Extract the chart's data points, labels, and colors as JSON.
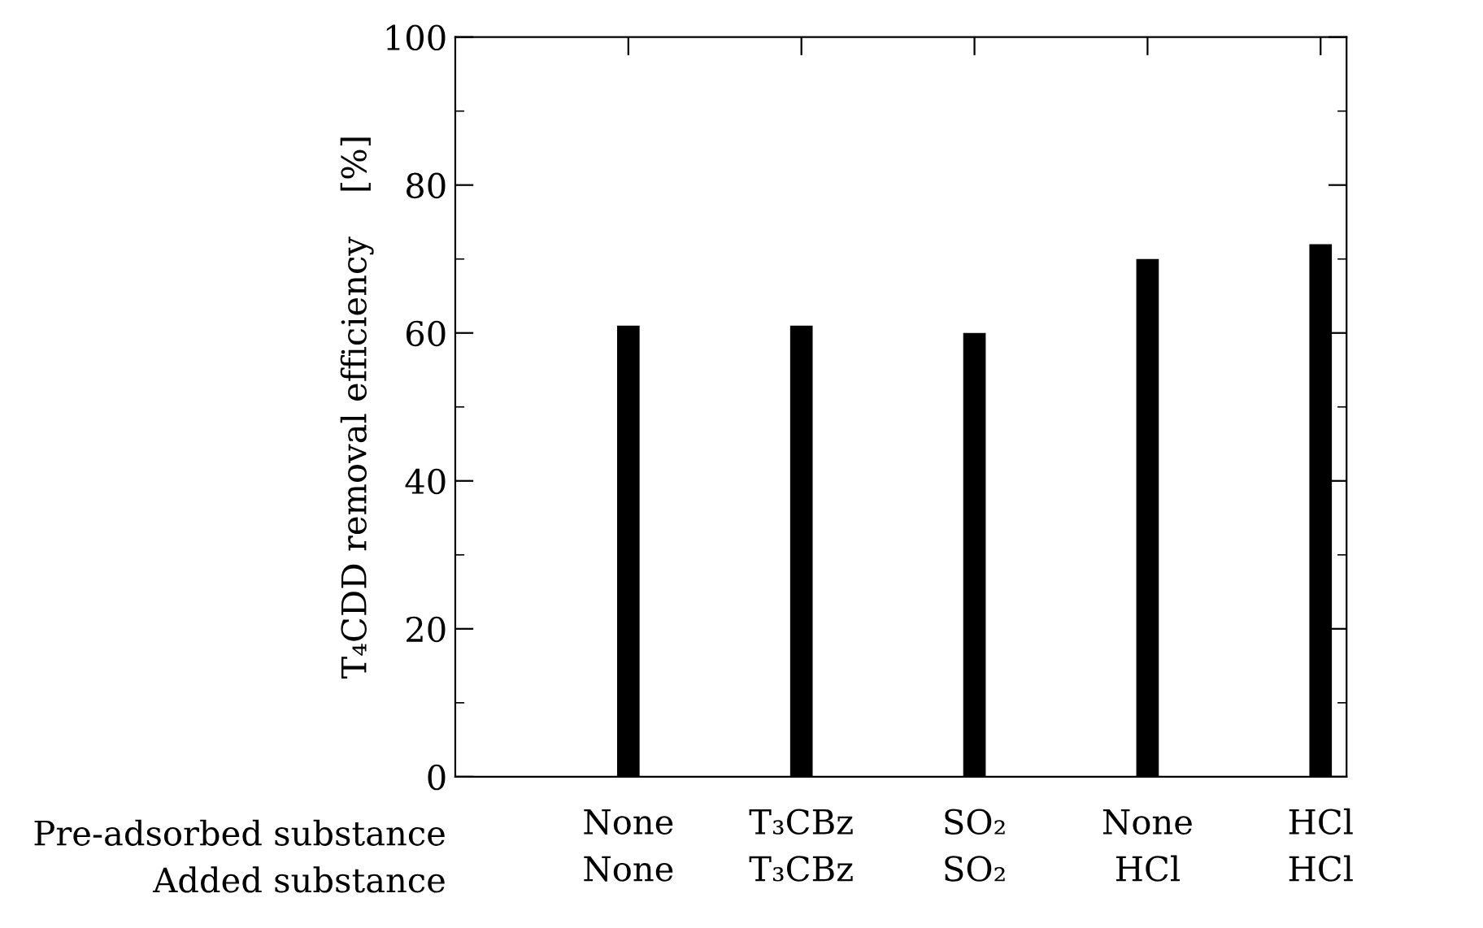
{
  "chart_data": {
    "type": "bar",
    "ylabel": "T₄CDD removal efficiency    [%]",
    "categories": [
      "None\nNone",
      "T₃CBz\nT₃CBz",
      "SO₂\nSO₂",
      "None\nHCl",
      "HCl\nHCl"
    ],
    "values": [
      61,
      61,
      60,
      70,
      72
    ],
    "color": "#000000",
    "ylim": [
      0,
      100
    ],
    "yticks": [
      0,
      20,
      40,
      60,
      80,
      100
    ],
    "annotations": [
      "Pre-adsorbed substance",
      "Added substance"
    ],
    "grid": false,
    "legend": false
  }
}
